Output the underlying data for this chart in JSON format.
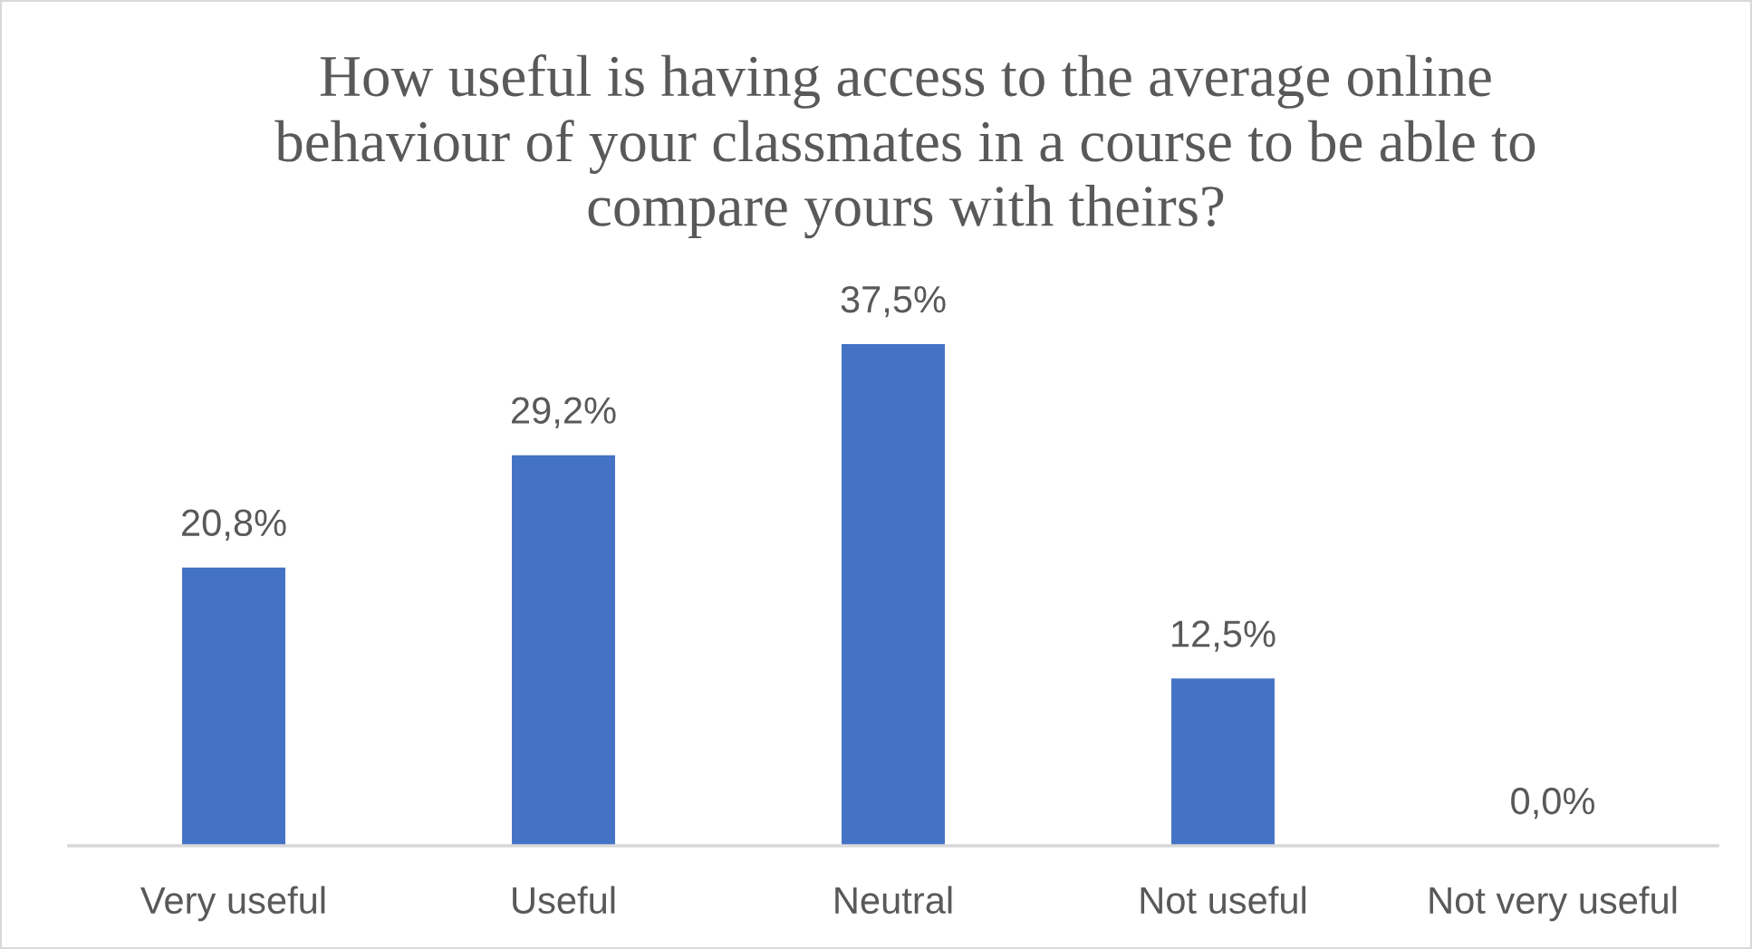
{
  "chart_data": {
    "type": "bar",
    "title": "How useful is having access to the average online behaviour of your classmates in a course to be able to compare yours with theirs?",
    "categories": [
      "Very useful",
      "Useful",
      "Neutral",
      "Not useful",
      "Not very useful"
    ],
    "values": [
      20.8,
      29.2,
      37.5,
      12.5,
      0.0
    ],
    "value_labels": [
      "20,8%",
      "29,2%",
      "37,5%",
      "12,5%",
      "0,0%"
    ],
    "color": "#4472c4",
    "tick_labels": "x"
  }
}
